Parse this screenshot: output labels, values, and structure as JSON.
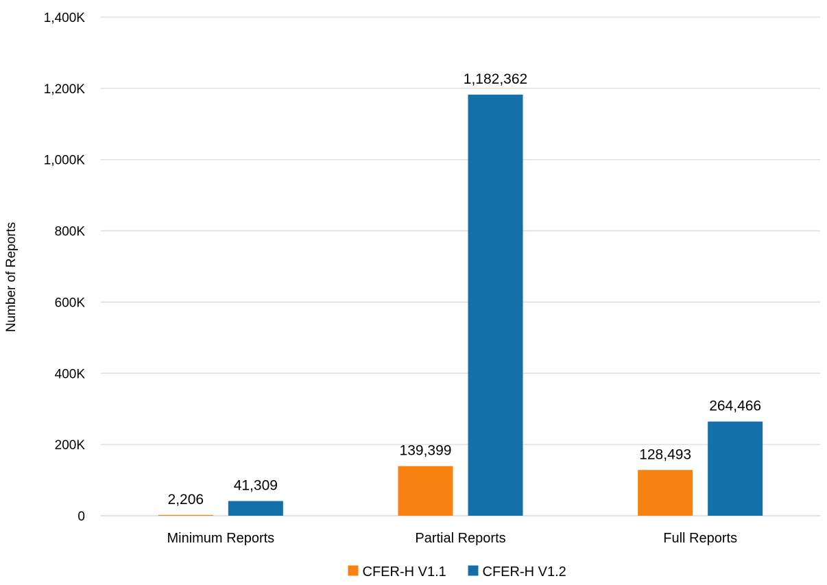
{
  "chart_data": {
    "type": "bar",
    "title": "",
    "xlabel": "",
    "ylabel": "Number of Reports",
    "categories": [
      "Minimum Reports",
      "Partial Reports",
      "Full Reports"
    ],
    "series": [
      {
        "name": "CFER-H V1.1",
        "color": "#F7820F",
        "values": [
          2206,
          139399,
          128493
        ]
      },
      {
        "name": "CFER-H V1.2",
        "color": "#156FA8",
        "values": [
          41309,
          1182362,
          264466
        ]
      }
    ],
    "data_labels": [
      [
        "2,206",
        "139,399",
        "128,493"
      ],
      [
        "41,309",
        "1,182,362",
        "264,466"
      ]
    ],
    "ylim": [
      0,
      1400000
    ],
    "yticks": [
      0,
      200000,
      400000,
      600000,
      800000,
      1000000,
      1200000,
      1400000
    ],
    "ytick_labels": [
      "0",
      "200K",
      "400K",
      "600K",
      "800K",
      "1,000K",
      "1,200K",
      "1,400K"
    ],
    "grid": true,
    "gridline_color": "#D9D9D9",
    "legend_position": "bottom"
  }
}
